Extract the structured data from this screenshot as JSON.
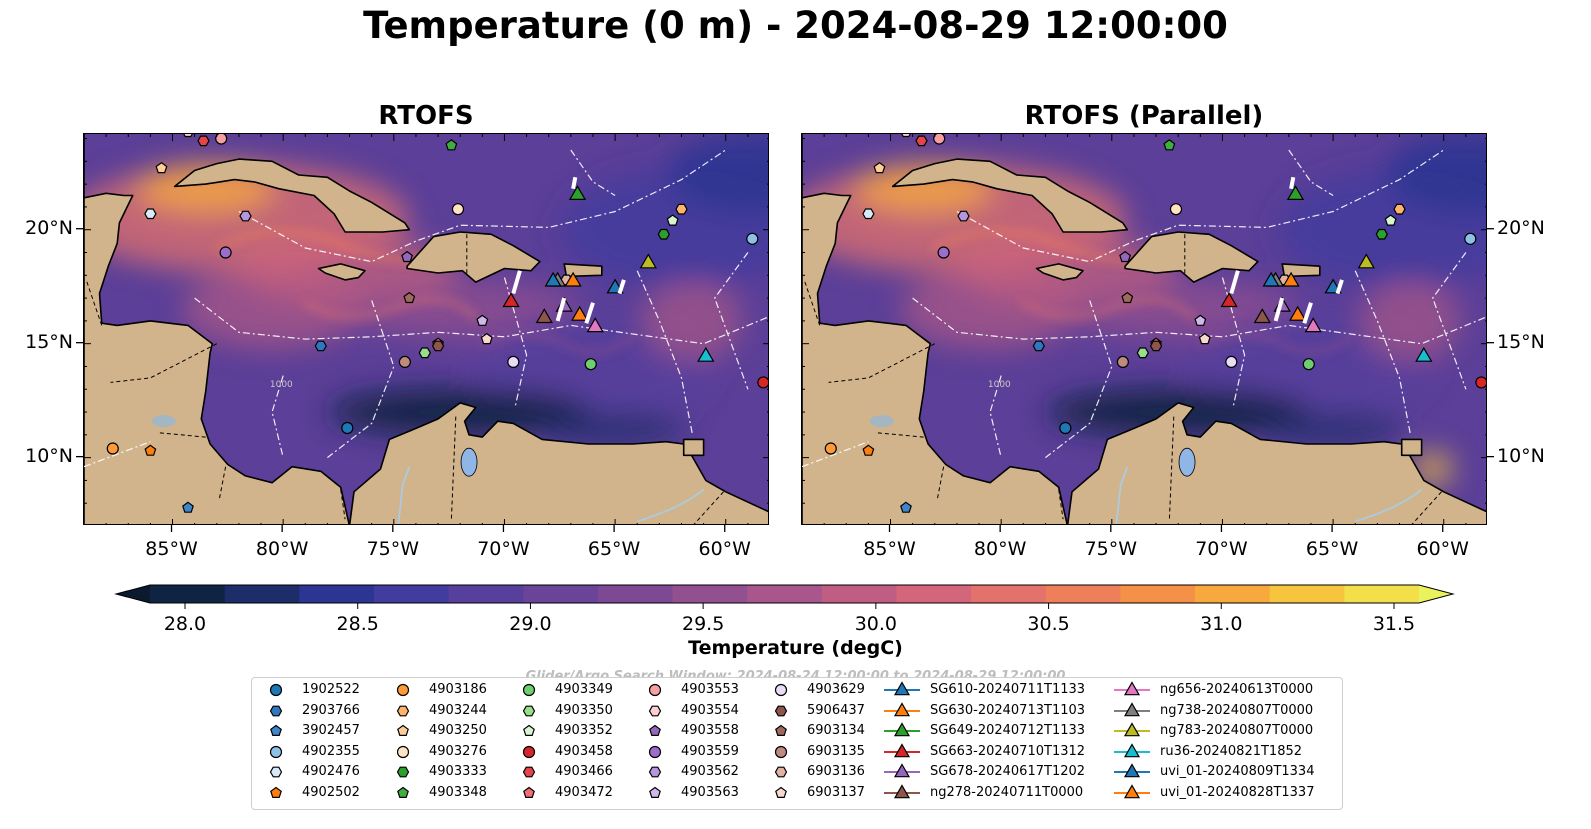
{
  "title": "Temperature (0 m) - 2024-08-29 12:00:00",
  "panels": [
    {
      "title": "RTOFS",
      "lat_labels_side": "left"
    },
    {
      "title": "RTOFS (Parallel)",
      "lat_labels_side": "right"
    }
  ],
  "map_extent": {
    "lon": [
      -89,
      -58
    ],
    "lat": [
      7,
      24.2
    ]
  },
  "lon_ticks": [
    -85,
    -80,
    -75,
    -70,
    -65,
    -60
  ],
  "lon_tick_labels": [
    "85°W",
    "80°W",
    "75°W",
    "70°W",
    "65°W",
    "60°W"
  ],
  "lat_ticks": [
    10,
    15,
    20
  ],
  "lat_tick_labels": [
    "10°N",
    "15°N",
    "20°N"
  ],
  "bathymetry_contour_label": "1000",
  "colorbar": {
    "label": "Temperature (degC)",
    "min": 28.0,
    "max": 31.5,
    "ticks": [
      "28.0",
      "28.5",
      "29.0",
      "29.5",
      "30.0",
      "30.5",
      "31.0",
      "31.5"
    ],
    "colors": [
      "#0f2342",
      "#1c2d6a",
      "#2c3592",
      "#423c9e",
      "#56409c",
      "#6a4498",
      "#7e4994",
      "#925090",
      "#a8568b",
      "#bf5e82",
      "#d3667a",
      "#e3726c",
      "#ef7f5b",
      "#f59147",
      "#f7a93e",
      "#f6c43d",
      "#f2df4a"
    ],
    "extend_max_color": "#eaf25e",
    "extend_min_color": "#0b1a2f"
  },
  "colors": {
    "land": "#d2b48c",
    "rivers": "#aacbe0",
    "lake": "#8fb6e6",
    "eez_lines": "#ffffff"
  },
  "search_window": "Glider/Argo Search Window: 2024-08-24 12:00:00 to 2024-08-29 12:00:00",
  "legend": {
    "columns": [
      [
        {
          "label": "1902522",
          "marker": "circle",
          "color": "#1f77b4"
        },
        {
          "label": "2903766",
          "marker": "hexagon",
          "color": "#2f78c0"
        },
        {
          "label": "3902457",
          "marker": "pentagon",
          "color": "#3c86c9"
        },
        {
          "label": "4902355",
          "marker": "circle",
          "color": "#8fc1e6"
        },
        {
          "label": "4902476",
          "marker": "hexagon",
          "color": "#d6ebf7"
        },
        {
          "label": "4902502",
          "marker": "pentagon",
          "color": "#ff7f0e"
        }
      ],
      [
        {
          "label": "4903186",
          "marker": "circle",
          "color": "#ff9a3c"
        },
        {
          "label": "4903244",
          "marker": "hexagon",
          "color": "#ffb36b"
        },
        {
          "label": "4903250",
          "marker": "pentagon",
          "color": "#ffce98"
        },
        {
          "label": "4903276",
          "marker": "circle",
          "color": "#ffe3c4"
        },
        {
          "label": "4903333",
          "marker": "hexagon",
          "color": "#2ca02c"
        },
        {
          "label": "4903348",
          "marker": "pentagon",
          "color": "#3fae3f"
        }
      ],
      [
        {
          "label": "4903349",
          "marker": "circle",
          "color": "#6fce6f"
        },
        {
          "label": "4903350",
          "marker": "hexagon",
          "color": "#98df8a"
        },
        {
          "label": "4903352",
          "marker": "pentagon",
          "color": "#d8f5d0"
        },
        {
          "label": "4903458",
          "marker": "circle",
          "color": "#d62728"
        },
        {
          "label": "4903466",
          "marker": "hexagon",
          "color": "#e5444a"
        },
        {
          "label": "4903472",
          "marker": "pentagon",
          "color": "#ef6f72"
        }
      ],
      [
        {
          "label": "4903553",
          "marker": "circle",
          "color": "#f4a0a2"
        },
        {
          "label": "4903554",
          "marker": "hexagon",
          "color": "#fbd0d2"
        },
        {
          "label": "4903558",
          "marker": "pentagon",
          "color": "#9467bd"
        },
        {
          "label": "4903559",
          "marker": "circle",
          "color": "#9a6fcc"
        },
        {
          "label": "4903562",
          "marker": "hexagon",
          "color": "#b496dc"
        },
        {
          "label": "4903563",
          "marker": "pentagon",
          "color": "#cfb8ea"
        }
      ],
      [
        {
          "label": "4903629",
          "marker": "circle",
          "color": "#e9dcf6"
        },
        {
          "label": "5906437",
          "marker": "hexagon",
          "color": "#8c564b"
        },
        {
          "label": "6903134",
          "marker": "pentagon",
          "color": "#a0695c"
        },
        {
          "label": "6903135",
          "marker": "circle",
          "color": "#c08b7f"
        },
        {
          "label": "6903136",
          "marker": "hexagon",
          "color": "#e2b2a3"
        },
        {
          "label": "6903137",
          "marker": "pentagon",
          "color": "#f8d9cd"
        }
      ],
      [
        {
          "label": "SG610-20240711T1133",
          "marker": "triangle",
          "color": "#1f77b4"
        },
        {
          "label": "SG630-20240713T1103",
          "marker": "triangle",
          "color": "#ff7f0e"
        },
        {
          "label": "SG649-20240712T1133",
          "marker": "triangle",
          "color": "#2ca02c"
        },
        {
          "label": "SG663-20240710T1312",
          "marker": "triangle",
          "color": "#d62728"
        },
        {
          "label": "SG678-20240617T1202",
          "marker": "triangle",
          "color": "#9467bd"
        },
        {
          "label": "ng278-20240711T0000",
          "marker": "triangle",
          "color": "#8c564b"
        }
      ],
      [
        {
          "label": "ng656-20240613T0000",
          "marker": "triangle",
          "color": "#e377c2"
        },
        {
          "label": "ng738-20240807T0000",
          "marker": "triangle",
          "color": "#7f7f7f"
        },
        {
          "label": "ng783-20240807T0000",
          "marker": "triangle",
          "color": "#bcbd22"
        },
        {
          "label": "ru36-20240821T1852",
          "marker": "triangle",
          "color": "#17becf"
        },
        {
          "label": "uvi_01-20240809T1334",
          "marker": "triangle",
          "color": "#1f77b4"
        },
        {
          "label": "uvi_01-20240828T1337",
          "marker": "triangle",
          "color": "#ff7f0e"
        }
      ]
    ]
  },
  "observations": [
    {
      "id": "1902522",
      "lon": -77.1,
      "lat": 11.3
    },
    {
      "id": "2903766",
      "lon": -78.3,
      "lat": 14.9
    },
    {
      "id": "3902457",
      "lon": -84.3,
      "lat": 7.8
    },
    {
      "id": "4902355",
      "lon": -58.8,
      "lat": 19.6
    },
    {
      "id": "4902476",
      "lon": -86.0,
      "lat": 20.7
    },
    {
      "id": "4902502",
      "lon": -86.0,
      "lat": 10.3
    },
    {
      "id": "4903186",
      "lon": -87.7,
      "lat": 10.4
    },
    {
      "id": "4903244",
      "lon": -62.0,
      "lat": 20.9
    },
    {
      "id": "4903250",
      "lon": -85.5,
      "lat": 22.7
    },
    {
      "id": "4903276",
      "lon": -72.1,
      "lat": 20.9
    },
    {
      "id": "4903333",
      "lon": -62.8,
      "lat": 19.8
    },
    {
      "id": "4903348",
      "lon": -72.4,
      "lat": 23.7
    },
    {
      "id": "4903349",
      "lon": -66.1,
      "lat": 14.1
    },
    {
      "id": "4903350",
      "lon": -73.6,
      "lat": 14.6
    },
    {
      "id": "4903352",
      "lon": -62.4,
      "lat": 20.4
    },
    {
      "id": "4903458",
      "lon": -58.3,
      "lat": 13.3
    },
    {
      "id": "4903466",
      "lon": -83.6,
      "lat": 23.9
    },
    {
      "id": "4903472",
      "lon": -73.0,
      "lat": 15.0
    },
    {
      "id": "4903553",
      "lon": -82.8,
      "lat": 24.0
    },
    {
      "id": "4903554",
      "lon": -84.3,
      "lat": 24.3
    },
    {
      "id": "4903558",
      "lon": -74.4,
      "lat": 18.8
    },
    {
      "id": "4903559",
      "lon": -82.6,
      "lat": 19.0
    },
    {
      "id": "4903562",
      "lon": -81.7,
      "lat": 20.6
    },
    {
      "id": "4903563",
      "lon": -71.0,
      "lat": 16.0
    },
    {
      "id": "4903629",
      "lon": -69.6,
      "lat": 14.2
    },
    {
      "id": "5906437",
      "lon": -73.0,
      "lat": 14.9
    },
    {
      "id": "6903134",
      "lon": -74.3,
      "lat": 17.0
    },
    {
      "id": "6903135",
      "lon": -74.5,
      "lat": 14.2
    },
    {
      "id": "6903136",
      "lon": -67.2,
      "lat": 17.8
    },
    {
      "id": "6903137",
      "lon": -70.8,
      "lat": 15.2
    },
    {
      "id": "SG610-20240711T1133",
      "lon": -65.0,
      "lat": 17.5
    },
    {
      "id": "SG630-20240713T1103",
      "lon": -66.6,
      "lat": 16.3
    },
    {
      "id": "SG649-20240712T1133",
      "lon": -66.7,
      "lat": 21.6
    },
    {
      "id": "SG663-20240710T1312",
      "lon": -69.7,
      "lat": 16.9
    },
    {
      "id": "SG678-20240617T1202",
      "lon": -67.3,
      "lat": 16.7
    },
    {
      "id": "ng278-20240711T0000",
      "lon": -68.2,
      "lat": 16.2
    },
    {
      "id": "ng656-20240613T0000",
      "lon": -65.9,
      "lat": 15.8
    },
    {
      "id": "ng738-20240807T0000",
      "lon": -67.6,
      "lat": 17.8
    },
    {
      "id": "ng783-20240807T0000",
      "lon": -63.5,
      "lat": 18.6
    },
    {
      "id": "ru36-20240821T1852",
      "lon": -60.9,
      "lat": 14.5
    },
    {
      "id": "uvi_01-20240809T1334",
      "lon": -67.8,
      "lat": 17.8
    },
    {
      "id": "uvi_01-20240828T1337",
      "lon": -66.9,
      "lat": 17.8
    }
  ]
}
